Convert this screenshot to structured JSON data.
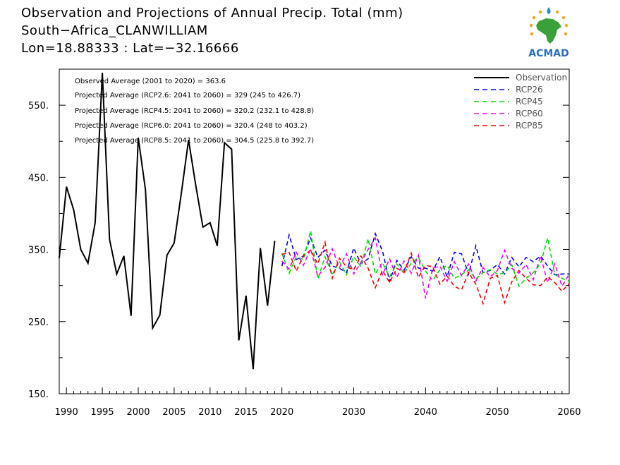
{
  "header": {
    "title": "Observation and Projections of Annual Precip. Total (mm)",
    "location": "South−Africa_CLANWILLIAM",
    "coords": "Lon=18.88333 : Lat=−32.16666"
  },
  "logo": {
    "text": "ACMAD",
    "icon": "africa-map-sun-logo"
  },
  "stats": [
    "Observed Average (2001 to 2020) = 363.6",
    "Projected Average (RCP2.6: 2041 to 2060) = 329 (245 to 426.7)",
    "Projected Average (RCP4.5: 2041 to 2060) = 320.2 (232.1 to 428.8)",
    "Projected Average (RCP6.0: 2041 to 2060) = 320.4 (248 to 403.2)",
    "Projected Average (RCP8.5: 2041 to 2060) = 304.5 (225.8 to 392.7)"
  ],
  "colors": {
    "observation": "#000000",
    "rcp26": "#0000ff",
    "rcp45": "#00dd00",
    "rcp60": "#ff00ff",
    "rcp85": "#ff0000"
  },
  "chart_data": {
    "type": "line",
    "ylim": [
      150,
      600
    ],
    "xlim": [
      1989,
      2060
    ],
    "yticks": [
      150,
      250,
      350,
      450,
      550
    ],
    "ytick_labels": [
      "150.",
      "250.",
      "350.",
      "450.",
      "550."
    ],
    "xticks": [
      1990,
      1995,
      2000,
      2005,
      2010,
      2015,
      2020,
      2030,
      2040,
      2050,
      2060
    ],
    "xtick_labels": [
      "1990",
      "1995",
      "2000",
      "2005",
      "2010",
      "2015",
      "2020",
      "2030",
      "2040",
      "2050",
      "2060"
    ],
    "legend_position": "top-right",
    "series": [
      {
        "name": "Observation",
        "key": "observation",
        "style": "solid",
        "x": [
          1989,
          1990,
          1991,
          1992,
          1993,
          1994,
          1995,
          1996,
          1997,
          1998,
          1999,
          2000,
          2001,
          2002,
          2003,
          2004,
          2005,
          2006,
          2007,
          2008,
          2009,
          2010,
          2011,
          2012,
          2013,
          2014,
          2015,
          2016,
          2017,
          2018,
          2019
        ],
        "values": [
          338,
          437,
          405,
          350,
          331,
          387,
          595,
          364,
          316,
          341,
          258,
          505,
          433,
          241,
          259,
          342,
          359,
          428,
          502,
          439,
          381,
          387,
          355,
          498,
          489,
          224,
          286,
          184,
          352,
          272,
          362
        ]
      },
      {
        "name": "RCP26",
        "key": "rcp26",
        "style": "dashed",
        "x": [
          2020,
          2021,
          2022,
          2023,
          2024,
          2025,
          2026,
          2027,
          2028,
          2029,
          2030,
          2031,
          2032,
          2033,
          2034,
          2035,
          2036,
          2037,
          2038,
          2039,
          2040,
          2041,
          2042,
          2043,
          2044,
          2045,
          2046,
          2047,
          2048,
          2049,
          2050,
          2051,
          2052,
          2053,
          2054,
          2055,
          2056,
          2057,
          2058,
          2059,
          2060
        ],
        "values": [
          327,
          370,
          336,
          341,
          366,
          339,
          349,
          327,
          324,
          318,
          352,
          330,
          337,
          372,
          348,
          306,
          335,
          321,
          340,
          324,
          324,
          320,
          340,
          312,
          346,
          344,
          316,
          355,
          318,
          321,
          329,
          316,
          339,
          326,
          339,
          333,
          341,
          327,
          315,
          316,
          316
        ]
      },
      {
        "name": "RCP45",
        "key": "rcp45",
        "style": "dashed",
        "x": [
          2020,
          2021,
          2022,
          2023,
          2024,
          2025,
          2026,
          2027,
          2028,
          2029,
          2030,
          2031,
          2032,
          2033,
          2034,
          2035,
          2036,
          2037,
          2038,
          2039,
          2040,
          2041,
          2042,
          2043,
          2044,
          2045,
          2046,
          2047,
          2048,
          2049,
          2050,
          2051,
          2052,
          2053,
          2054,
          2055,
          2056,
          2057,
          2058,
          2059,
          2060
        ],
        "values": [
          345,
          317,
          340,
          336,
          376,
          309,
          340,
          315,
          333,
          315,
          340,
          326,
          365,
          316,
          332,
          312,
          330,
          317,
          331,
          339,
          320,
          307,
          322,
          328,
          310,
          315,
          322,
          309,
          318,
          322,
          316,
          317,
          329,
          299,
          310,
          318,
          330,
          366,
          315,
          310,
          306
        ]
      },
      {
        "name": "RCP60",
        "key": "rcp60",
        "style": "dashed",
        "x": [
          2020,
          2021,
          2022,
          2023,
          2024,
          2025,
          2026,
          2027,
          2028,
          2029,
          2030,
          2031,
          2032,
          2033,
          2034,
          2035,
          2036,
          2037,
          2038,
          2039,
          2040,
          2041,
          2042,
          2043,
          2044,
          2045,
          2046,
          2047,
          2048,
          2049,
          2050,
          2051,
          2052,
          2053,
          2054,
          2055,
          2056,
          2057,
          2058,
          2059,
          2060
        ],
        "values": [
          334,
          323,
          346,
          328,
          351,
          313,
          325,
          351,
          325,
          344,
          316,
          332,
          350,
          366,
          315,
          337,
          311,
          334,
          317,
          342,
          282,
          324,
          327,
          306,
          333,
          314,
          330,
          306,
          325,
          312,
          321,
          349,
          324,
          317,
          329,
          308,
          341,
          304,
          330,
          299,
          316
        ]
      },
      {
        "name": "RCP85",
        "key": "rcp85",
        "style": "dashed",
        "x": [
          2020,
          2021,
          2022,
          2023,
          2024,
          2025,
          2026,
          2027,
          2028,
          2029,
          2030,
          2031,
          2032,
          2033,
          2034,
          2035,
          2036,
          2037,
          2038,
          2039,
          2040,
          2041,
          2042,
          2043,
          2044,
          2045,
          2046,
          2047,
          2048,
          2049,
          2050,
          2051,
          2052,
          2053,
          2054,
          2055,
          2056,
          2057,
          2058,
          2059,
          2060
        ],
        "values": [
          343,
          346,
          320,
          341,
          349,
          330,
          360,
          310,
          338,
          326,
          322,
          341,
          324,
          297,
          321,
          304,
          324,
          318,
          345,
          311,
          328,
          326,
          302,
          313,
          299,
          294,
          318,
          302,
          275,
          310,
          314,
          276,
          305,
          321,
          310,
          301,
          300,
          312,
          304,
          292,
          303
        ]
      }
    ]
  }
}
